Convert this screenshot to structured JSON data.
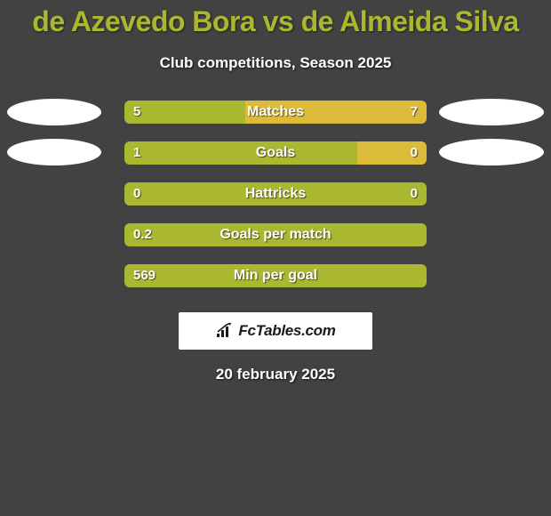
{
  "title": "de Azevedo Bora vs de Almeida Silva",
  "subtitle": "Club competitions, Season 2025",
  "date": "20 february 2025",
  "logo_text": "FcTables.com",
  "colors": {
    "background": "#424242",
    "title": "#aab730",
    "text": "#ffffff",
    "bar_left": "#aab730",
    "bar_right": "#dcbb3a",
    "bar_bg": "#6a6a6a",
    "avatar": "#ffffff"
  },
  "stats": [
    {
      "label": "Matches",
      "left_val": "5",
      "right_val": "7",
      "left_pct": 40,
      "right_pct": 60,
      "show_right": true,
      "avatar_left": true,
      "avatar_right": true
    },
    {
      "label": "Goals",
      "left_val": "1",
      "right_val": "0",
      "left_pct": 77,
      "right_pct": 23,
      "show_right": true,
      "avatar_left": true,
      "avatar_right": true,
      "avatar_variant": 2
    },
    {
      "label": "Hattricks",
      "left_val": "0",
      "right_val": "0",
      "left_pct": 100,
      "right_pct": 0,
      "show_right": false,
      "avatar_left": false,
      "avatar_right": false
    },
    {
      "label": "Goals per match",
      "left_val": "0.2",
      "right_val": "",
      "left_pct": 100,
      "right_pct": 0,
      "show_right": false,
      "avatar_left": false,
      "avatar_right": false
    },
    {
      "label": "Min per goal",
      "left_val": "569",
      "right_val": "",
      "left_pct": 100,
      "right_pct": 0,
      "show_right": false,
      "avatar_left": false,
      "avatar_right": false
    }
  ]
}
